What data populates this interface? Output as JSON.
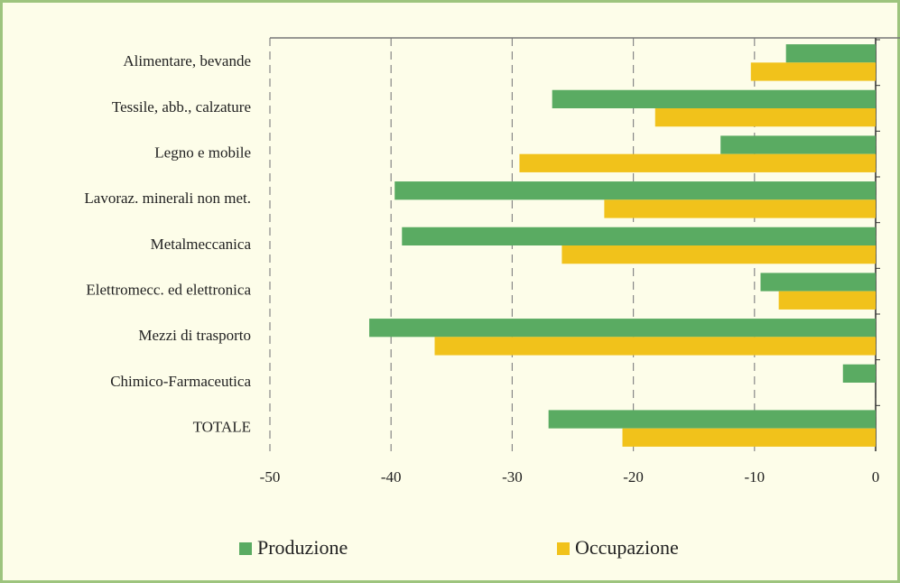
{
  "chart_data": {
    "type": "hbar",
    "categories": [
      "Alimentare, bevande",
      "Tessile, abb., calzature",
      "Legno e mobile",
      "Lavoraz. minerali non met.",
      "Metalmeccanica",
      "Elettromecc. ed elettronica",
      "Mezzi di trasporto",
      "Chimico-Farmaceutica",
      "TOTALE"
    ],
    "series": [
      {
        "name": "Produzione",
        "color": "#5aab62",
        "values": [
          -7.4,
          -26.7,
          -12.8,
          -39.7,
          -39.1,
          -9.5,
          -41.8,
          -2.7,
          -27.0
        ]
      },
      {
        "name": "Occupazione",
        "color": "#f1c21b",
        "values": [
          -10.3,
          -18.2,
          -29.4,
          -22.4,
          -25.9,
          -8.0,
          -36.4,
          null,
          -20.9
        ]
      }
    ],
    "xlim": [
      -50,
      0
    ],
    "xticks": [
      -50,
      -40,
      -30,
      -20,
      -10,
      0
    ],
    "grid": true,
    "legend": "bottom"
  }
}
